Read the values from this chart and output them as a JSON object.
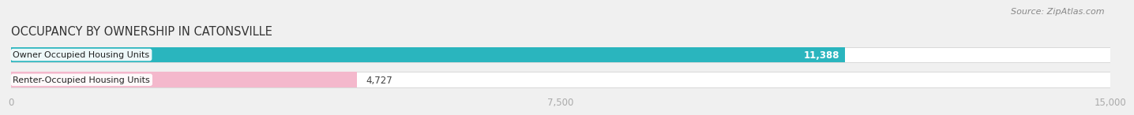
{
  "title": "OCCUPANCY BY OWNERSHIP IN CATONSVILLE",
  "source": "Source: ZipAtlas.com",
  "categories": [
    "Renter-Occupied Housing Units",
    "Owner Occupied Housing Units"
  ],
  "values": [
    4727,
    11388
  ],
  "bar_colors": [
    "#f4b8cc",
    "#2ab5be"
  ],
  "xlim": [
    0,
    15000
  ],
  "xticks": [
    0,
    7500,
    15000
  ],
  "xtick_labels": [
    "0",
    "7,500",
    "15,000"
  ],
  "value_labels": [
    "4,727",
    "11,388"
  ],
  "value_label_inside": [
    false,
    true
  ],
  "title_fontsize": 10.5,
  "source_fontsize": 8,
  "bar_label_fontsize": 8.5,
  "tick_fontsize": 8.5,
  "category_fontsize": 8,
  "background_color": "#f0f0f0",
  "bar_background_color": "#e0e0e0",
  "title_color": "#333333",
  "source_color": "#888888",
  "tick_color": "#aaaaaa",
  "bar_height": 0.62,
  "value_inside_color": "white",
  "value_outside_color": "#444444",
  "cat_label_bg": "white"
}
